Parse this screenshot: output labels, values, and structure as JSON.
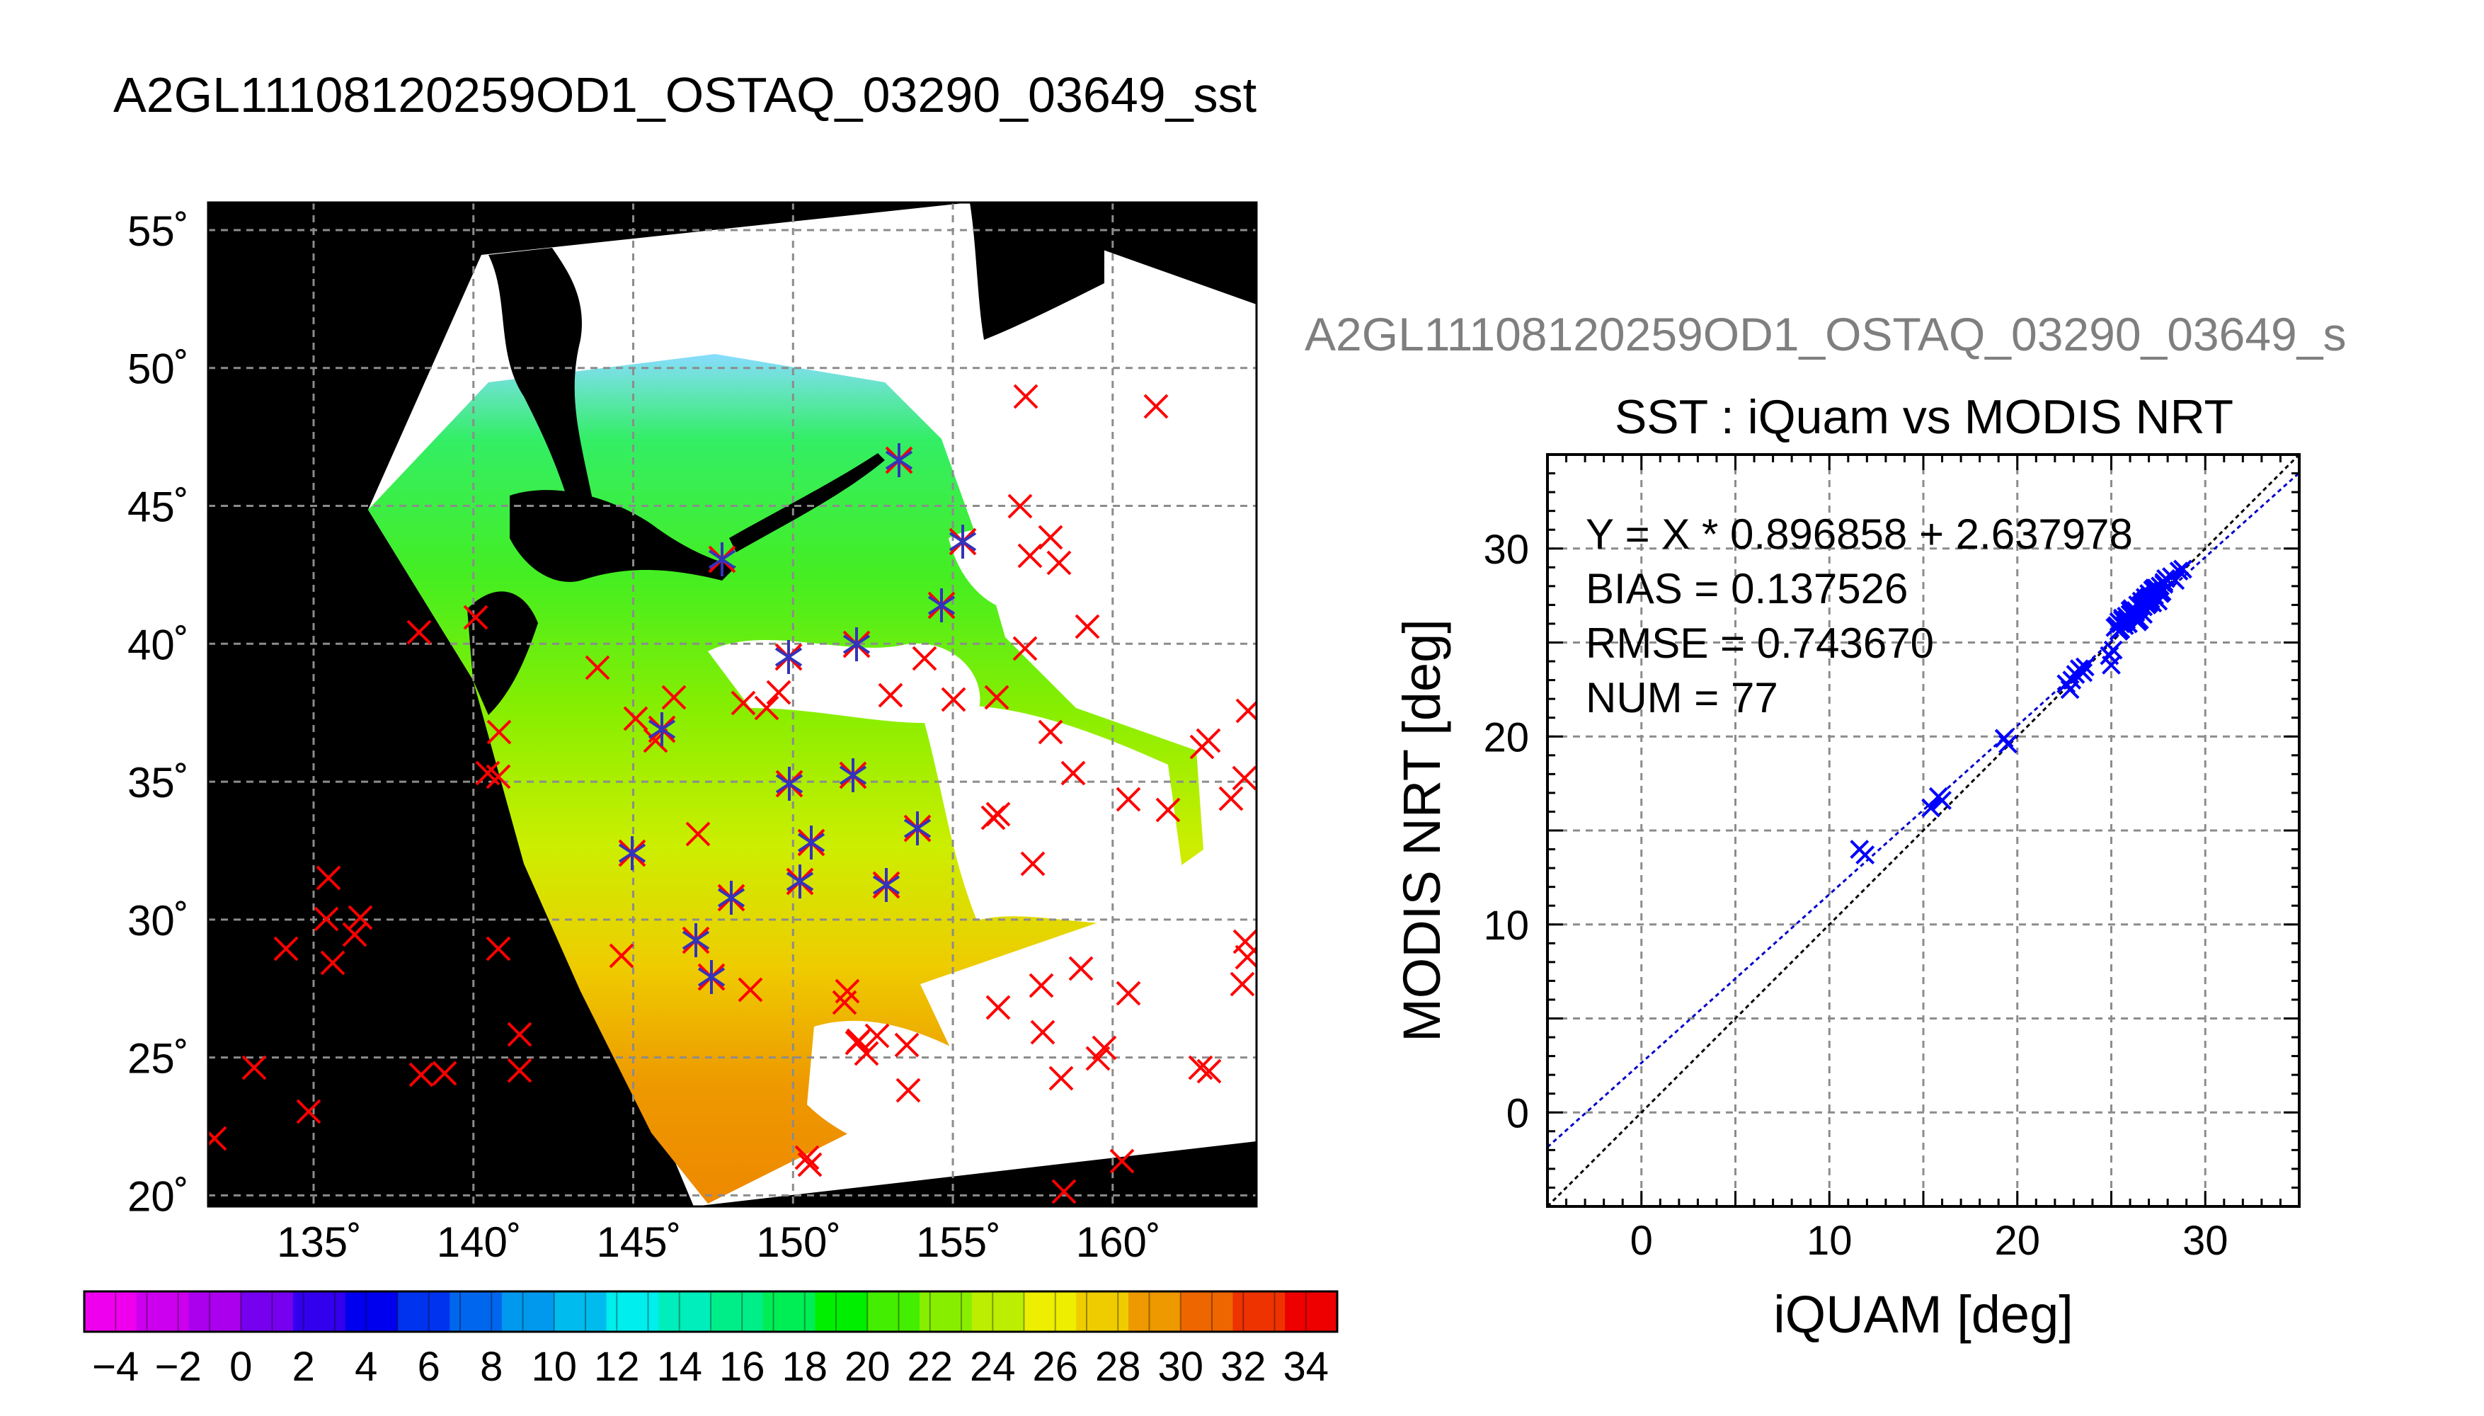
{
  "page": {
    "main_title": "A2GL11108120259OD1_OSTAQ_03290_03649_sst",
    "sub_title": "A2GL11108120259OD1_OSTAQ_03290_03649_s"
  },
  "map": {
    "lat_ticks": [
      {
        "value": 55,
        "label": "55˚"
      },
      {
        "value": 50,
        "label": "50˚"
      },
      {
        "value": 45,
        "label": "45˚"
      },
      {
        "value": 40,
        "label": "40˚"
      },
      {
        "value": 35,
        "label": "35˚"
      },
      {
        "value": 30,
        "label": "30˚"
      },
      {
        "value": 25,
        "label": "25˚"
      },
      {
        "value": 20,
        "label": "20˚"
      }
    ],
    "lon_ticks": [
      {
        "value": 135,
        "label": "135˚"
      },
      {
        "value": 140,
        "label": "140˚"
      },
      {
        "value": 145,
        "label": "145˚"
      },
      {
        "value": 150,
        "label": "150˚"
      },
      {
        "value": 155,
        "label": "155˚"
      },
      {
        "value": 160,
        "label": "160˚"
      }
    ],
    "colors": {
      "land": "#000000",
      "swath_missing": "#ffffff",
      "grid": "#8c8c8c",
      "in_situ": "#ff0000",
      "matchup": "#3333bb"
    }
  },
  "colorbar": {
    "labels": [
      "−4",
      "−2",
      "0",
      "2",
      "4",
      "6",
      "8",
      "10",
      "12",
      "14",
      "16",
      "18",
      "20",
      "22",
      "24",
      "26",
      "28",
      "30",
      "32",
      "34"
    ],
    "min": -5,
    "max": 35,
    "step": 2,
    "colors": [
      "#ee00ee",
      "#cc00ee",
      "#aa00ee",
      "#7700ee",
      "#3300ee",
      "#0000ee",
      "#0033ee",
      "#0066ee",
      "#0099ee",
      "#00bbee",
      "#00eeee",
      "#00eebb",
      "#00ee88",
      "#00ee55",
      "#00ee00",
      "#44ee00",
      "#88ee00",
      "#bbee00",
      "#eeee00",
      "#eecc00",
      "#ee9900",
      "#ee6600",
      "#ee3300",
      "#ee0000"
    ]
  },
  "chart_data": {
    "type": "scatter",
    "title": "SST : iQuam vs MODIS NRT",
    "xlabel": "iQUAM [deg]",
    "ylabel": "MODIS NRT [deg]",
    "xlim": [
      -5,
      35
    ],
    "ylim": [
      -5,
      35
    ],
    "xticks": [
      0,
      10,
      20,
      30
    ],
    "yticks": [
      0,
      10,
      20,
      30
    ],
    "grid": true,
    "annotations": [
      "Y = X * 0.896858 + 2.637978",
      "BIAS = 0.137526",
      "RMSE = 0.743670",
      "NUM = 77"
    ],
    "fit": {
      "slope": 0.896858,
      "intercept": 2.637978,
      "color": "#0000cc"
    },
    "identity_line": {
      "color": "#000000"
    },
    "point_color": "#0000ff",
    "series": [
      {
        "x": [
          11.6,
          11.9,
          15.4,
          15.8,
          16.0,
          19.3,
          19.5,
          22.6,
          22.8,
          23.1,
          23.3,
          23.5,
          23.6,
          24.9,
          25.0,
          25.1,
          25.3,
          25.4,
          25.5,
          25.6,
          25.7,
          25.8,
          25.9,
          26.0,
          26.1,
          26.2,
          26.3,
          26.4,
          26.5,
          26.6,
          26.7,
          26.8,
          26.9,
          27.0,
          27.1,
          27.2,
          27.3,
          27.4,
          27.5,
          27.6,
          27.7,
          27.8,
          28.2,
          28.4,
          28.6,
          25.2,
          25.9,
          26.3,
          26.7,
          27.0,
          27.3,
          27.6,
          25.6,
          26.1,
          26.5,
          27.1,
          27.4,
          22.9,
          23.4,
          25.5,
          26.2,
          26.9,
          27.2,
          27.5,
          27.8,
          26.4,
          25.8,
          26.0,
          26.6,
          27.0,
          26.8,
          25.4,
          25.7,
          26.3,
          27.3,
          27.9,
          28.8
        ],
        "y": [
          14.0,
          13.7,
          16.2,
          16.8,
          16.6,
          19.9,
          19.6,
          22.8,
          22.5,
          23.3,
          23.6,
          23.4,
          23.7,
          24.3,
          23.8,
          24.6,
          25.9,
          26.1,
          25.7,
          26.2,
          25.9,
          26.4,
          26.0,
          26.5,
          26.8,
          26.3,
          26.6,
          27.0,
          26.2,
          27.2,
          26.9,
          27.4,
          27.0,
          27.6,
          27.3,
          27.8,
          27.5,
          27.9,
          27.2,
          28.0,
          27.7,
          28.1,
          28.5,
          28.3,
          28.8,
          25.8,
          26.0,
          26.7,
          26.5,
          27.1,
          27.4,
          27.6,
          26.3,
          26.4,
          26.9,
          27.5,
          27.8,
          23.0,
          23.5,
          26.0,
          26.6,
          27.3,
          27.1,
          27.7,
          28.2,
          26.1,
          26.2,
          26.7,
          27.0,
          27.4,
          27.2,
          25.6,
          26.1,
          26.4,
          27.9,
          28.4,
          28.9
        ]
      }
    ]
  }
}
